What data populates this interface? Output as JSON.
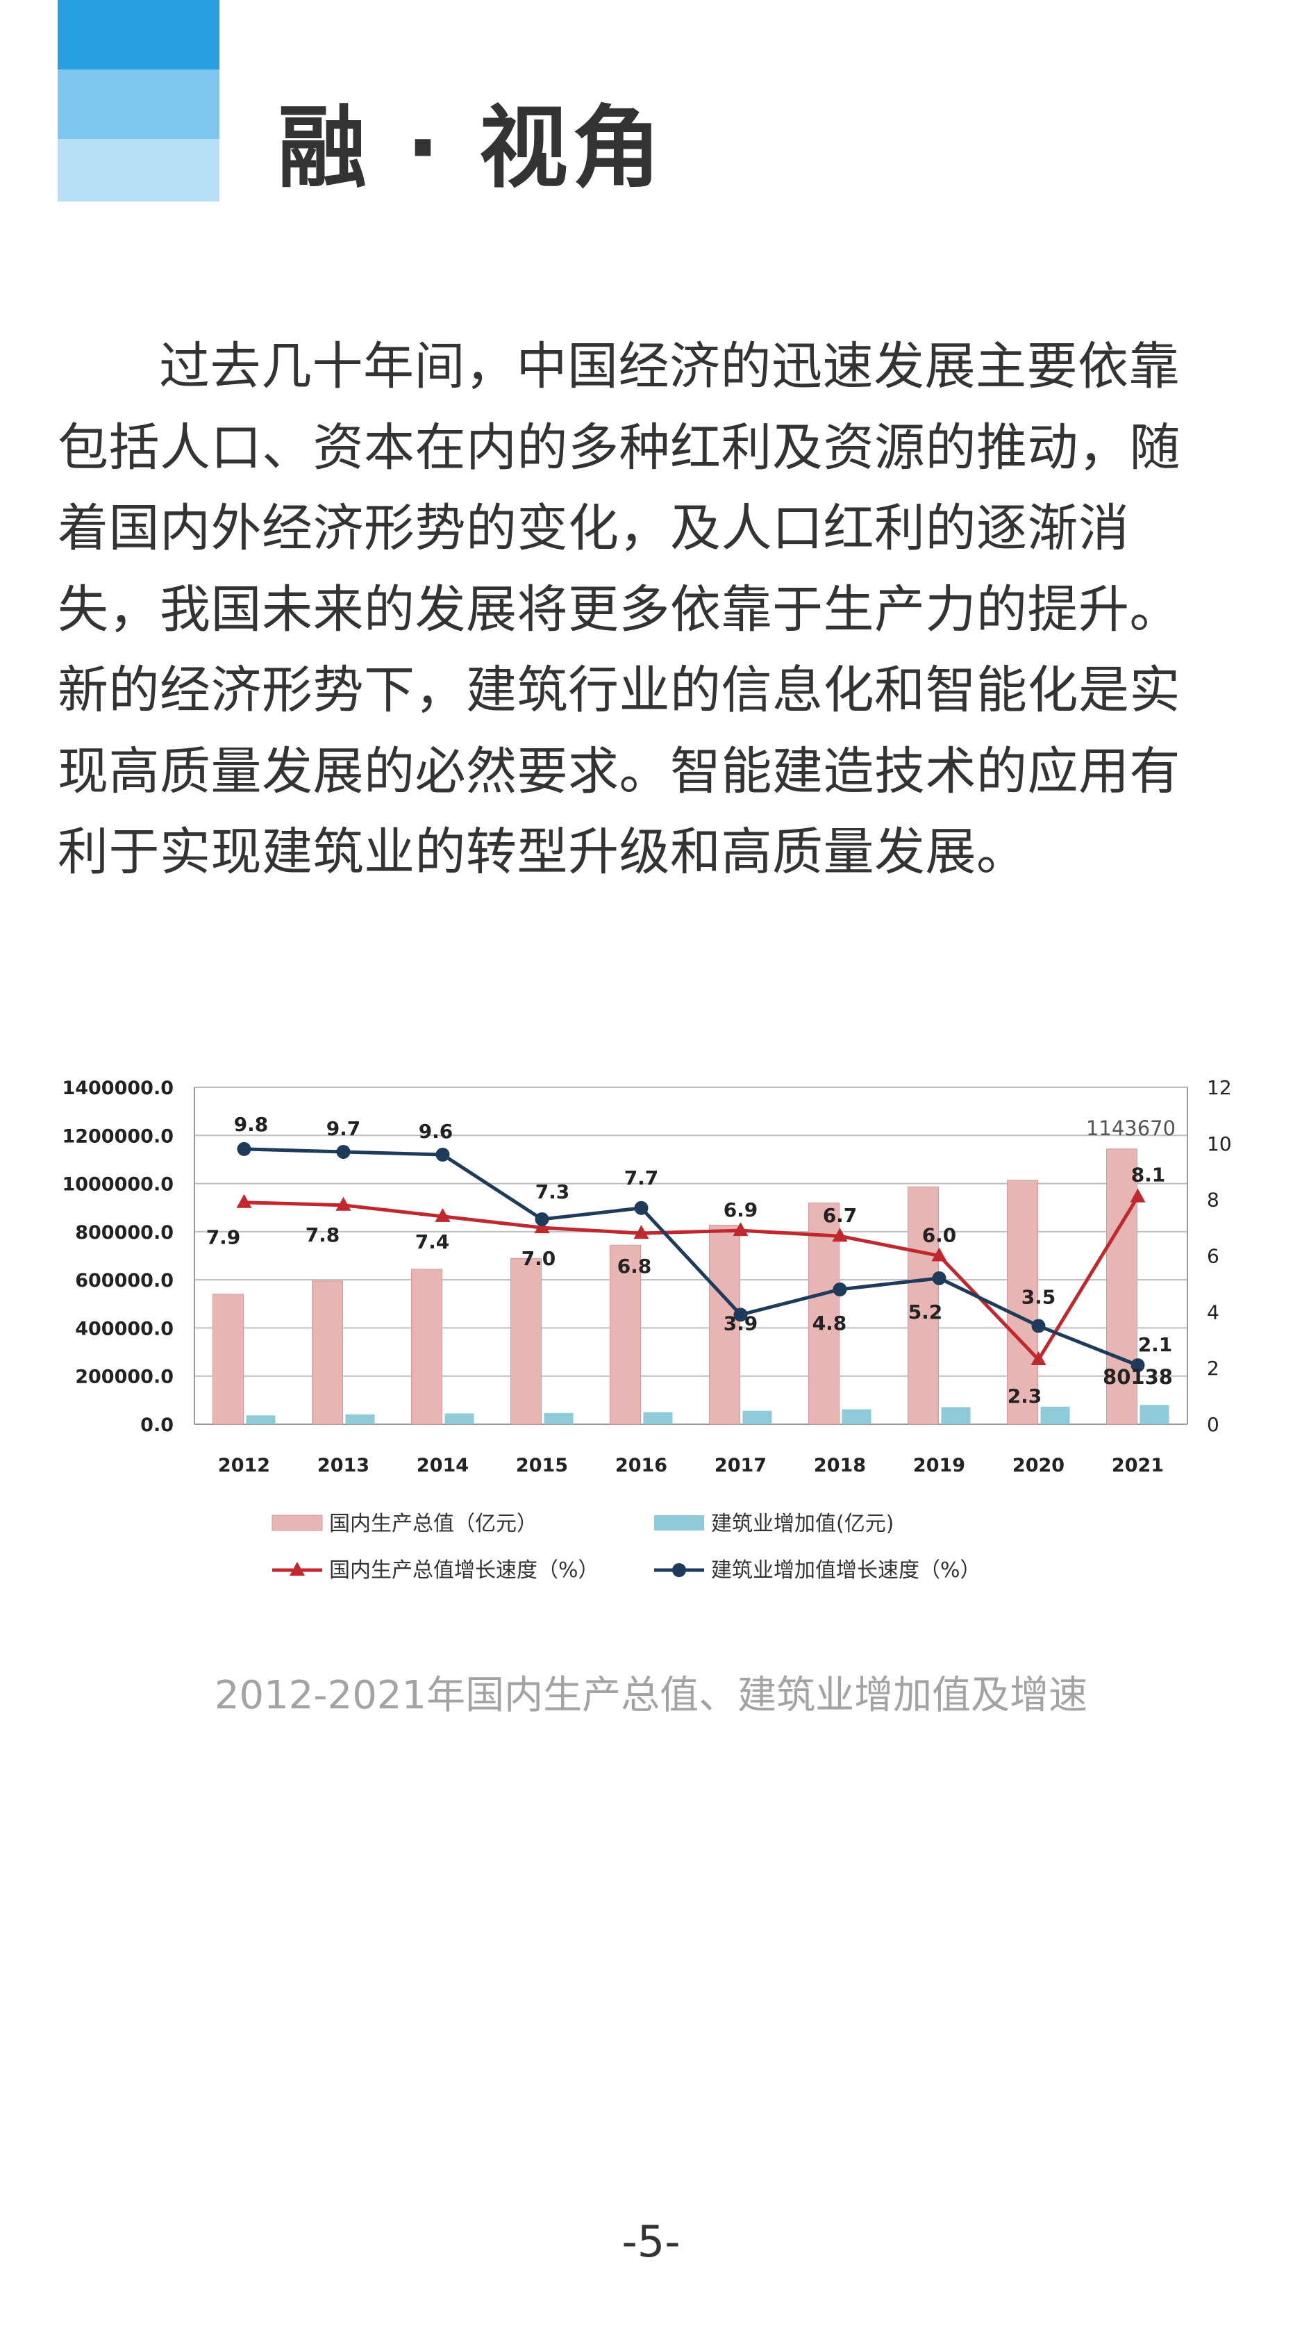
{
  "header": {
    "title": "融 · 视角",
    "colors": {
      "deco_dark": "#2a9fdf",
      "deco_mid": "#7dc6ee",
      "deco_light": "#b7e0f6"
    }
  },
  "body": {
    "paragraph": "过去几十年间，中国经济的迅速发展主要依靠包括人口、资本在内的多种红利及资源的推动，随着国内外经济形势的变化，及人口红利的逐渐消失，我国未来的发展将更多依靠于生产力的提升。新的经济形势下，建筑行业的信息化和智能化是实现高质量发展的必然要求。智能建造技术的应用有利于实现建筑业的转型升级和高质量发展。"
  },
  "chart_data": {
    "type": "bar",
    "categories": [
      "2012",
      "2013",
      "2014",
      "2015",
      "2016",
      "2017",
      "2018",
      "2019",
      "2020",
      "2021"
    ],
    "y_left": {
      "ylim": [
        0,
        1400000
      ],
      "ticks": [
        "0.0",
        "200000.0",
        "400000.0",
        "600000.0",
        "800000.0",
        "1000000.0",
        "1200000.0",
        "1400000.0"
      ]
    },
    "y_right": {
      "ylim": [
        0,
        12
      ],
      "ticks": [
        "0",
        "2",
        "4",
        "6",
        "8",
        "10",
        "12"
      ]
    },
    "grid": true,
    "legend_position": "bottom",
    "series": [
      {
        "name": "国内生产总值（亿元）",
        "kind": "bar",
        "axis": "left",
        "color": "#e6b5b4",
        "values": [
          540367,
          595244,
          643974,
          689052,
          744127,
          827122,
          919281,
          986515,
          1013567,
          1143670
        ]
      },
      {
        "name": "建筑业增加值(亿元)",
        "kind": "bar",
        "axis": "left",
        "color": "#8fcad8",
        "values": [
          36896,
          40897,
          44880,
          46627,
          49703,
          55689,
          61808,
          70904,
          72996,
          80138
        ]
      },
      {
        "name": "国内生产总值增长速度（%）",
        "kind": "line",
        "axis": "right",
        "color": "#c0282d",
        "marker": "triangle",
        "values": [
          7.9,
          7.8,
          7.4,
          7.0,
          6.8,
          6.9,
          6.7,
          6.0,
          2.3,
          8.1
        ],
        "labels": [
          "7.9",
          "7.8",
          "7.4",
          "7.0",
          "6.8",
          "6.9",
          "6.7",
          "6.0",
          "2.3",
          "8.1"
        ]
      },
      {
        "name": "建筑业增加值增长速度（%）",
        "kind": "line",
        "axis": "right",
        "color": "#1f3b5c",
        "marker": "circle",
        "values": [
          9.8,
          9.7,
          9.6,
          7.3,
          7.7,
          3.9,
          4.8,
          5.2,
          3.5,
          2.1
        ],
        "labels": [
          "9.8",
          "9.7",
          "9.6",
          "7.3",
          "7.7",
          "3.9",
          "4.8",
          "5.2",
          "3.5",
          "2.1"
        ]
      }
    ],
    "annotations": {
      "gdp_2021": "1143670",
      "construction_2021": "80138"
    }
  },
  "caption": "2012-2021年国内生产总值、建筑业增加值及增速",
  "page_number": "-5-"
}
